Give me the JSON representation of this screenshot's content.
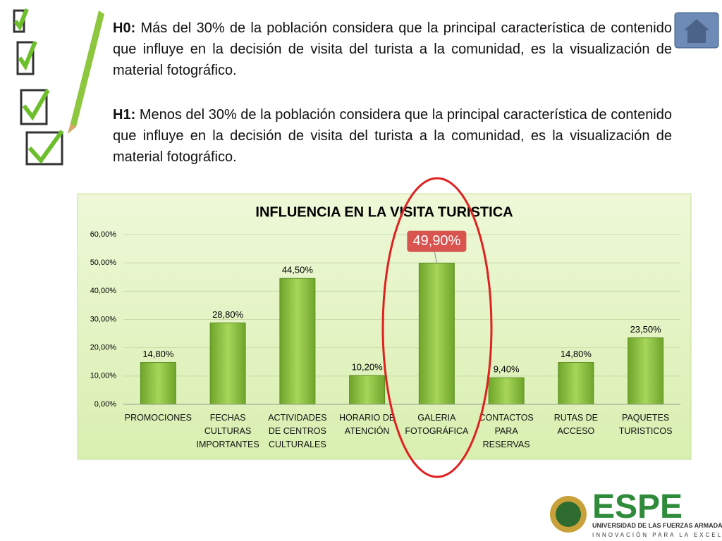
{
  "hypotheses": [
    {
      "label": "H0:",
      "text": " Más del 30% de la población considera que la principal característica de contenido que influye en la decisión de visita del turista a la comunidad, es la visualización de material fotográfico."
    },
    {
      "label": "H1:",
      "text": " Menos del 30% de la población considera que la principal característica de contenido que influye en la decisión de visita del turista a la comunidad, es la visualización de material  fotográfico."
    }
  ],
  "chart_data": {
    "type": "bar",
    "title": "INFLUENCIA EN LA VISITA TURISTICA",
    "categories": [
      "PROMOCIONES",
      "FECHAS\nCULTURAS\nIMPORTANTES",
      "ACTIVIDADES\nDE CENTROS\nCULTURALES",
      "HORARIO DE\nATENCIÓN",
      "GALERIA\nFOTOGRÁFICA",
      "CONTACTOS\nPARA\nRESERVAS",
      "RUTAS DE\nACCESO",
      "PAQUETES\nTURISTICOS"
    ],
    "values": [
      14.8,
      28.8,
      44.5,
      10.2,
      49.9,
      9.4,
      14.8,
      23.5
    ],
    "value_labels": [
      "14,80%",
      "28,80%",
      "44,50%",
      "10,20%",
      "49,90%",
      "9,40%",
      "14,80%",
      "23,50%"
    ],
    "color": "#8dc63f",
    "highlight": 4,
    "ylim": [
      0,
      60
    ],
    "yticks": [
      {
        "value": 0,
        "label": "0,00%"
      },
      {
        "value": 10,
        "label": "10,00%"
      },
      {
        "value": 20,
        "label": "20,00%"
      },
      {
        "value": 30,
        "label": "30,00%"
      },
      {
        "value": 40,
        "label": "40,00%"
      },
      {
        "value": 50,
        "label": "50,00%"
      },
      {
        "value": 60,
        "label": "60,00%"
      }
    ],
    "grid": true
  },
  "footer": {
    "brand": "ESPE",
    "university": "UNIVERSIDAD DE LAS FUERZAS ARMADAS",
    "motto": "INNOVACIÓN PARA LA EXCELENCIA"
  }
}
